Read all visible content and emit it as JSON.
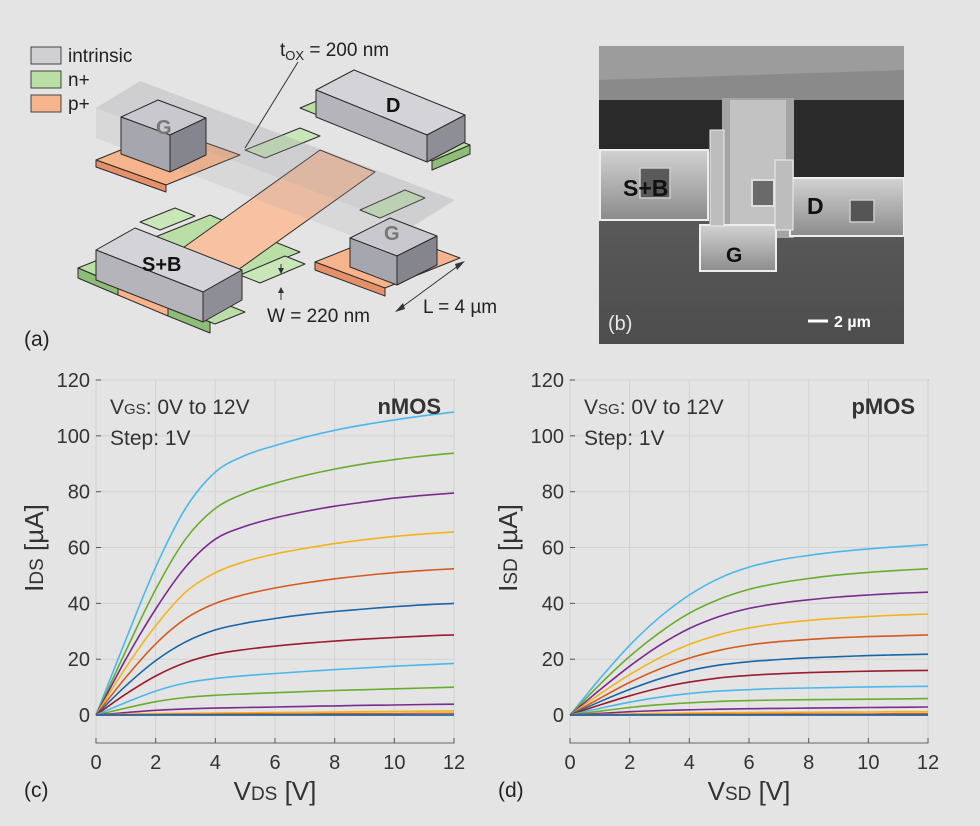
{
  "panel_a": {
    "label": "(a)",
    "legend": [
      {
        "label": "intrinsic",
        "color": "#d0d0d2"
      },
      {
        "label": "n+",
        "color": "#b9dea6"
      },
      {
        "label": "p+",
        "color": "#f6b48c"
      }
    ],
    "tox": "t<sub>OX</sub> = 200 nm",
    "tox_text": "t",
    "tox_sub": "OX",
    "tox_rest": " = 200 nm",
    "width": "W = 220 nm",
    "length": "L = 4 µm",
    "labels": {
      "gate1": "G",
      "gate2": "G",
      "drain": "D",
      "source": "S+B"
    }
  },
  "panel_b": {
    "label": "(b)",
    "labels": {
      "source": "S+B",
      "drain": "D",
      "gate": "G"
    },
    "scalebar": "2 µm"
  },
  "chart_data": [
    {
      "panel_label": "(c)",
      "type": "line",
      "corner_label": "nMOS",
      "annotation_main": "V",
      "annotation_sub": "GS",
      "annotation_rest": ": 0V to 12V",
      "annotation_step": "Step: 1V",
      "xlabel_main": "V",
      "xlabel_sub": "DS",
      "xlabel_rest": " [V]",
      "ylabel_main": "I",
      "ylabel_sub": "DS",
      "ylabel_rest": " [µA]",
      "xlim": [
        0,
        12
      ],
      "ylim": [
        -10,
        120
      ],
      "xticks": [
        0,
        2,
        4,
        6,
        8,
        10,
        12
      ],
      "yticks": [
        0,
        20,
        40,
        60,
        80,
        100,
        120
      ],
      "grid": true,
      "x": [
        0,
        1,
        2,
        3,
        4,
        5,
        6,
        7,
        8,
        9,
        10,
        11,
        12
      ],
      "series": [
        {
          "color": "#4ab8ea",
          "values": [
            0,
            27,
            53,
            74,
            87,
            93,
            96.5,
            99.5,
            102,
            104,
            105.7,
            107.2,
            108.5
          ]
        },
        {
          "color": "#6aac2c",
          "values": [
            0,
            23,
            45,
            63,
            74,
            79.5,
            83,
            85.8,
            88.1,
            90,
            91.5,
            92.8,
            93.8
          ]
        },
        {
          "color": "#7b2a8f",
          "values": [
            0,
            20,
            38,
            53,
            63,
            67.6,
            70.6,
            72.9,
            74.8,
            76.3,
            77.7,
            78.7,
            79.5
          ]
        },
        {
          "color": "#f2b41c",
          "values": [
            0,
            17,
            32,
            44,
            51,
            55,
            57.7,
            59.7,
            61.4,
            62.8,
            64,
            64.9,
            65.6
          ]
        },
        {
          "color": "#d65a1e",
          "values": [
            0,
            13.5,
            25.5,
            34.5,
            40,
            43.2,
            45.5,
            47.3,
            48.8,
            50,
            51,
            51.8,
            52.4
          ]
        },
        {
          "color": "#1666a8",
          "values": [
            0,
            10.5,
            19.5,
            26.2,
            30.5,
            32.9,
            34.6,
            36,
            37.1,
            38,
            38.8,
            39.5,
            40
          ]
        },
        {
          "color": "#9a1b2e",
          "values": [
            0,
            7.5,
            14,
            18.8,
            21.8,
            23.5,
            24.7,
            25.7,
            26.5,
            27.2,
            27.8,
            28.3,
            28.7
          ]
        },
        {
          "color": "#4ab8ea",
          "values": [
            0,
            4.5,
            8.6,
            11.5,
            13.1,
            14.1,
            14.9,
            15.6,
            16.3,
            16.9,
            17.5,
            18,
            18.5
          ]
        },
        {
          "color": "#6aac2c",
          "values": [
            0,
            2.5,
            4.8,
            6.3,
            7.1,
            7.6,
            8,
            8.4,
            8.8,
            9.1,
            9.4,
            9.7,
            10
          ]
        },
        {
          "color": "#7b2a8f",
          "values": [
            0,
            0.9,
            1.7,
            2.2,
            2.5,
            2.7,
            2.9,
            3.1,
            3.3,
            3.5,
            3.6,
            3.8,
            3.9
          ]
        },
        {
          "color": "#f2b41c",
          "values": [
            0,
            0.3,
            0.5,
            0.6,
            0.7,
            0.8,
            0.9,
            1,
            1.1,
            1.2,
            1.3,
            1.4,
            1.5
          ]
        },
        {
          "color": "#d65a1e",
          "values": [
            0,
            0.1,
            0.2,
            0.3,
            0.3,
            0.4,
            0.4,
            0.4,
            0.5,
            0.5,
            0.5,
            0.6,
            0.6
          ]
        },
        {
          "color": "#1666a8",
          "values": [
            0,
            0,
            0,
            0,
            0,
            0,
            0,
            0,
            0,
            0,
            0,
            0,
            0
          ]
        }
      ]
    },
    {
      "panel_label": "(d)",
      "type": "line",
      "corner_label": "pMOS",
      "annotation_main": "V",
      "annotation_sub": "SG",
      "annotation_rest": ": 0V to 12V",
      "annotation_step": "Step: 1V",
      "xlabel_main": "V",
      "xlabel_sub": "SD",
      "xlabel_rest": " [V]",
      "ylabel_main": "I",
      "ylabel_sub": "SD",
      "ylabel_rest": " [µA]",
      "xlim": [
        0,
        12
      ],
      "ylim": [
        -10,
        120
      ],
      "xticks": [
        0,
        2,
        4,
        6,
        8,
        10,
        12
      ],
      "yticks": [
        0,
        20,
        40,
        60,
        80,
        100,
        120
      ],
      "grid": true,
      "x": [
        0,
        1,
        2,
        3,
        4,
        5,
        6,
        7,
        8,
        9,
        10,
        11,
        12
      ],
      "series": [
        {
          "color": "#4ab8ea",
          "values": [
            0,
            13,
            25,
            35,
            43,
            49,
            53,
            55.5,
            57.2,
            58.5,
            59.5,
            60.3,
            61
          ]
        },
        {
          "color": "#6aac2c",
          "values": [
            0,
            11,
            21,
            29.5,
            36.5,
            41.5,
            45,
            47.3,
            48.9,
            50.2,
            51.1,
            51.8,
            52.4
          ]
        },
        {
          "color": "#7b2a8f",
          "values": [
            0,
            9,
            17.5,
            25,
            31,
            35.3,
            38.2,
            40,
            41.3,
            42.3,
            43,
            43.6,
            44
          ]
        },
        {
          "color": "#f2b41c",
          "values": [
            0,
            7.5,
            14.5,
            20.5,
            25.3,
            28.8,
            31.2,
            32.8,
            33.9,
            34.7,
            35.3,
            35.8,
            36.2
          ]
        },
        {
          "color": "#d65a1e",
          "values": [
            0,
            6,
            11.7,
            16.5,
            20.4,
            23.2,
            25.1,
            26.3,
            27.1,
            27.7,
            28.1,
            28.4,
            28.7
          ]
        },
        {
          "color": "#1666a8",
          "values": [
            0,
            4.8,
            9.2,
            13,
            15.9,
            17.9,
            19.1,
            19.9,
            20.5,
            20.9,
            21.3,
            21.6,
            21.8
          ]
        },
        {
          "color": "#9a1b2e",
          "values": [
            0,
            3.6,
            6.9,
            9.7,
            11.8,
            13.3,
            14.2,
            14.8,
            15.2,
            15.5,
            15.7,
            15.9,
            16
          ]
        },
        {
          "color": "#4ab8ea",
          "values": [
            0,
            2.4,
            4.6,
            6.4,
            7.7,
            8.6,
            9.1,
            9.5,
            9.7,
            9.9,
            10.1,
            10.2,
            10.3
          ]
        },
        {
          "color": "#6aac2c",
          "values": [
            0,
            1.4,
            2.7,
            3.7,
            4.4,
            4.9,
            5.2,
            5.4,
            5.5,
            5.6,
            5.7,
            5.8,
            5.9
          ]
        },
        {
          "color": "#7b2a8f",
          "values": [
            0,
            0.6,
            1.2,
            1.6,
            1.9,
            2.1,
            2.3,
            2.4,
            2.5,
            2.6,
            2.7,
            2.8,
            2.9
          ]
        },
        {
          "color": "#f2b41c",
          "values": [
            0,
            0.2,
            0.4,
            0.6,
            0.7,
            0.8,
            0.9,
            1,
            1,
            1.1,
            1.1,
            1.2,
            1.2
          ]
        },
        {
          "color": "#d65a1e",
          "values": [
            0,
            0.1,
            0.2,
            0.2,
            0.3,
            0.3,
            0.3,
            0.4,
            0.4,
            0.4,
            0.4,
            0.5,
            0.5
          ]
        },
        {
          "color": "#1666a8",
          "values": [
            0,
            0,
            0,
            0,
            0,
            0,
            0,
            0,
            0,
            0,
            0,
            0,
            0
          ]
        }
      ]
    }
  ]
}
